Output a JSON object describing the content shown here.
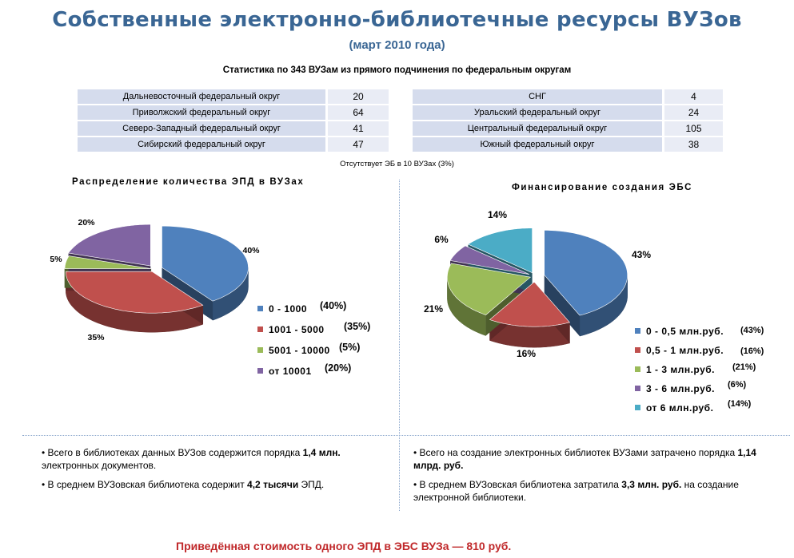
{
  "header": {
    "title": "Собственные электронно-библиотечные ресурсы ВУЗов",
    "subtitle": "(март 2010 года)"
  },
  "stats": {
    "heading": "Статистика по 343  ВУЗам из прямого подчинения по федеральным округам",
    "left": [
      {
        "name": "Дальневосточный федеральный округ",
        "value": "20"
      },
      {
        "name": "Приволжский федеральный округ",
        "value": "64"
      },
      {
        "name": "Северо-Западный федеральный округ",
        "value": "41"
      },
      {
        "name": "Сибирский федеральный округ",
        "value": "47"
      }
    ],
    "right": [
      {
        "name": "СНГ",
        "value": "4"
      },
      {
        "name": "Уральский федеральный округ",
        "value": "24"
      },
      {
        "name": "Центральный федеральный округ",
        "value": "105"
      },
      {
        "name": "Южный федеральный округ",
        "value": "38"
      }
    ],
    "note": "Отсутствует ЭБ в 10 ВУЗах (3%)"
  },
  "chart_data": [
    {
      "type": "pie",
      "title": "Распределение количества ЭПД в ВУЗах",
      "series": [
        {
          "labels": [
            "0 - 1000",
            "1001 - 5000",
            "5001 - 10000",
            "от 10001"
          ],
          "values": [
            40,
            35,
            5,
            20
          ],
          "data_labels": [
            "40%",
            "35%",
            "5%",
            "20%"
          ],
          "legend_values": [
            "(40%)",
            "(35%)",
            "(5%)",
            "(20%)"
          ]
        }
      ],
      "colors": [
        "#4f81bd",
        "#c0504d",
        "#9bbb59",
        "#8064a2"
      ],
      "legend_position": "bottom-right",
      "three_d": true
    },
    {
      "type": "pie",
      "title": "Финансирование создания ЭБС",
      "series": [
        {
          "labels": [
            "0 - 0,5 млн.руб.",
            "0,5 - 1 млн.руб.",
            "1 - 3 млн.руб.",
            "3 - 6 млн.руб.",
            "от 6 млн.руб."
          ],
          "values": [
            43,
            16,
            21,
            6,
            14
          ],
          "data_labels": [
            "43%",
            "16%",
            "21%",
            "6%",
            "14%"
          ],
          "legend_values": [
            "(43%)",
            "(16%)",
            "(21%)",
            "(6%)",
            "(14%)"
          ]
        }
      ],
      "colors": [
        "#4f81bd",
        "#c0504d",
        "#9bbb59",
        "#8064a2",
        "#4bacc6"
      ],
      "legend_position": "bottom-right",
      "three_d": true
    }
  ],
  "bullets_left": [
    {
      "text": "Всего в библиотеках  данных ВУЗов содержится порядка ",
      "bold": "1,4 млн.",
      "tail": " электронных  документов."
    },
    {
      "text": "В среднем ВУЗовская библиотека содержит ",
      "bold": "4,2  тысячи",
      "tail": " ЭПД."
    }
  ],
  "bullets_right": [
    {
      "text": "Всего на создание электронных библиотек ВУЗами затрачено порядка ",
      "bold": "1,14 млрд. руб.",
      "tail": ""
    },
    {
      "text": "В среднем ВУЗовская библиотека затратила ",
      "bold": "3,3 млн. руб.",
      "tail": " на создание электронной библиотеки."
    }
  ],
  "footer": "Приведённая стоимость одного ЭПД в ЭБС ВУЗа — 810 руб."
}
